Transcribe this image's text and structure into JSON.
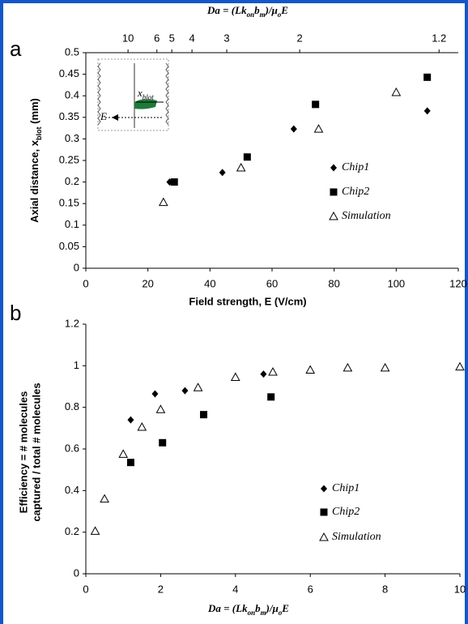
{
  "chart_data": [
    {
      "type": "scatter",
      "panel": "a",
      "x_label": "Field strength, E (V/cm)",
      "y_label": [
        "Axial distance, x",
        "blot",
        " (mm)"
      ],
      "x2_label": [
        "Da = (Lk",
        "on",
        "b",
        "m",
        ")/μ",
        "o",
        "E"
      ],
      "inset_labels": {
        "length": [
          "x",
          "blot"
        ],
        "field": "E"
      },
      "xlim": [
        0,
        120
      ],
      "xticks": [
        0,
        20,
        40,
        60,
        80,
        100,
        120
      ],
      "ylim": [
        0,
        0.5
      ],
      "yticks": [
        0,
        0.05,
        0.1,
        0.15,
        0.2,
        0.25,
        0.3,
        0.35,
        0.4,
        0.45,
        0.5
      ],
      "x2ticks": [
        {
          "value": 13.6,
          "label": "10"
        },
        {
          "value": 22.9,
          "label": "6"
        },
        {
          "value": 27.7,
          "label": "5"
        },
        {
          "value": 34.2,
          "label": "4"
        },
        {
          "value": 45.4,
          "label": "3"
        },
        {
          "value": 68.9,
          "label": "2"
        },
        {
          "value": 113.8,
          "label": "1.2"
        }
      ],
      "grid": false,
      "series": [
        {
          "name": "Chip1",
          "color": "#000000",
          "marker": "diamond",
          "x": [
            27,
            44,
            67,
            110
          ],
          "values": [
            0.2,
            0.222,
            0.323,
            0.365
          ]
        },
        {
          "name": "Chip2",
          "color": "#000000",
          "marker": "square",
          "x": [
            28.5,
            52,
            74,
            110
          ],
          "values": [
            0.2,
            0.258,
            0.38,
            0.443
          ]
        },
        {
          "name": "Simulation",
          "color": "#000000",
          "marker": "triangle-open",
          "x": [
            25,
            50,
            75,
            100
          ],
          "values": [
            0.153,
            0.233,
            0.323,
            0.408
          ]
        }
      ]
    },
    {
      "type": "scatter",
      "panel": "b",
      "x_label": [
        "Da = (Lk",
        "on",
        "b",
        "m",
        ")/μ",
        "o",
        "E"
      ],
      "y_label": [
        "Efficiency = # molecules",
        "captured / total # molecules"
      ],
      "xlim": [
        0,
        10
      ],
      "xticks": [
        0,
        2,
        4,
        6,
        8,
        10
      ],
      "ylim": [
        0,
        1.2
      ],
      "yticks": [
        0,
        0.2,
        0.4,
        0.6,
        0.8,
        1,
        1.2
      ],
      "grid": false,
      "series": [
        {
          "name": "Chip1",
          "color": "#000000",
          "marker": "diamond",
          "x": [
            1.2,
            1.85,
            2.65,
            4.75
          ],
          "values": [
            0.74,
            0.865,
            0.88,
            0.96
          ]
        },
        {
          "name": "Chip2",
          "color": "#000000",
          "marker": "square",
          "x": [
            1.2,
            2.05,
            3.15,
            4.95
          ],
          "values": [
            0.535,
            0.63,
            0.765,
            0.85
          ]
        },
        {
          "name": "Simulation",
          "color": "#000000",
          "marker": "triangle-open",
          "x": [
            0.25,
            0.5,
            1,
            1.5,
            2,
            3,
            4,
            5,
            6,
            7,
            8,
            10
          ],
          "values": [
            0.205,
            0.36,
            0.575,
            0.705,
            0.79,
            0.895,
            0.945,
            0.97,
            0.98,
            0.99,
            0.99,
            0.995
          ]
        }
      ]
    }
  ]
}
